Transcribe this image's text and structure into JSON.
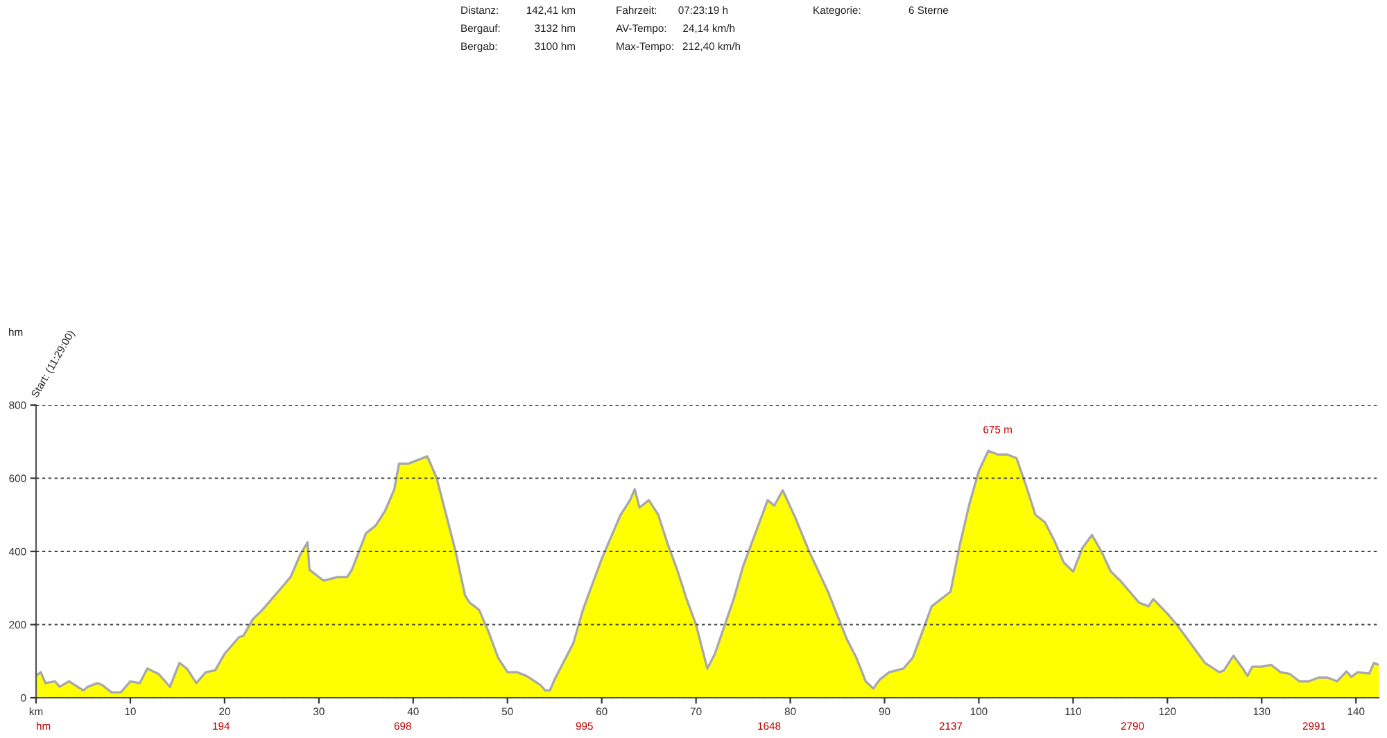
{
  "chart_data": {
    "type": "area",
    "x": [
      0,
      0.5,
      1,
      2,
      2.5,
      3.5,
      5,
      5.5,
      6.5,
      7,
      8,
      9,
      10,
      11,
      11.8,
      13,
      14.2,
      15.2,
      16,
      17,
      18,
      19,
      20,
      21.5,
      22,
      23,
      24,
      25,
      26,
      27,
      28,
      28.8,
      29,
      30.5,
      32,
      33,
      33.5,
      35,
      36,
      37,
      38,
      38.5,
      39.5,
      40.5,
      41.5,
      42.5,
      43.5,
      44.5,
      45.5,
      46,
      47,
      48,
      49,
      50,
      51,
      52,
      53.5,
      54,
      54.5,
      55,
      56,
      57,
      58,
      59,
      60,
      61,
      62,
      63,
      63.5,
      64,
      65,
      66,
      67,
      68,
      69,
      70,
      71.2,
      72,
      74,
      75,
      77.6,
      78.3,
      79.2,
      80.5,
      82,
      84,
      86,
      87,
      88,
      88.8,
      89.5,
      90.5,
      92,
      93,
      94,
      95,
      96,
      97,
      98,
      99,
      100,
      101,
      102,
      103,
      104,
      105,
      106,
      107,
      108,
      109,
      110,
      111,
      112,
      113,
      114,
      115,
      116,
      117,
      118,
      118.5,
      120,
      121,
      122,
      123,
      124,
      125.5,
      126,
      127,
      128,
      128.5,
      129,
      130,
      131,
      132,
      133,
      134,
      135,
      136,
      137,
      138,
      139,
      139.5,
      140.2,
      141.4,
      141.9,
      142.41
    ],
    "series": [
      {
        "color": "#ffff00",
        "values": [
          60,
          70,
          40,
          45,
          30,
          45,
          20,
          30,
          40,
          35,
          15,
          15,
          45,
          40,
          80,
          65,
          30,
          95,
          80,
          40,
          70,
          75,
          120,
          165,
          170,
          215,
          240,
          270,
          300,
          330,
          390,
          425,
          350,
          320,
          330,
          330,
          350,
          450,
          470,
          510,
          570,
          640,
          640,
          650,
          660,
          600,
          500,
          400,
          280,
          260,
          240,
          180,
          110,
          70,
          70,
          60,
          35,
          20,
          20,
          50,
          100,
          150,
          240,
          310,
          380,
          440,
          500,
          540,
          570,
          520,
          540,
          500,
          420,
          350,
          270,
          200,
          80,
          120,
          270,
          360,
          540,
          525,
          567,
          494,
          400,
          290,
          160,
          110,
          45,
          25,
          50,
          70,
          80,
          110,
          180,
          250,
          270,
          290,
          420,
          530,
          620,
          675,
          665,
          665,
          655,
          580,
          500,
          480,
          430,
          370,
          345,
          410,
          445,
          400,
          345,
          320,
          290,
          260,
          250,
          270,
          230,
          200,
          165,
          130,
          95,
          70,
          75,
          115,
          80,
          60,
          85,
          85,
          90,
          70,
          65,
          45,
          45,
          55,
          55,
          45,
          72,
          57,
          70,
          66,
          95,
          90
        ]
      }
    ],
    "xlim": [
      0,
      142.41
    ],
    "ylim": [
      0,
      800
    ],
    "xticks": [
      {
        "value": 0,
        "label": "km"
      },
      10,
      20,
      30,
      40,
      50,
      60,
      70,
      80,
      90,
      100,
      110,
      120,
      130,
      140
    ],
    "yticks": [
      0,
      200,
      400,
      600,
      800
    ],
    "grid": "y",
    "annotations": [
      "Distanz:",
      "142,41 km",
      "Fahrzeit:",
      "07:23:19 h",
      "Kategorie:",
      "6 Sterne",
      "Bergauf:",
      "3132 hm",
      "AV-Tempo:",
      "24,14 km/h",
      "Bergab:",
      "3100 hm",
      "Max-Tempo:",
      "212,40 km/h",
      "Start: (11:29:00)",
      "hm",
      "194",
      "698",
      "995",
      "1648",
      "2137",
      "2790",
      "2991",
      "hm",
      {
        "text": "675 m",
        "x": 102,
        "y": 675
      }
    ]
  }
}
